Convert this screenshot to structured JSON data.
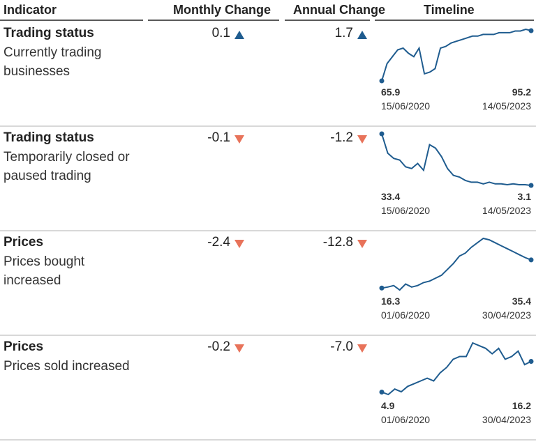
{
  "header": {
    "columns": [
      "Indicator",
      "Monthly Change",
      "Annual Change",
      "Timeline"
    ]
  },
  "rows": [
    {
      "title": "Trading status",
      "subtitle": "Currently trading businesses",
      "monthly_change": "0.1",
      "annual_change": "1.7",
      "timeline": {
        "start_date": "15/06/2020",
        "end_date": "14/05/2023",
        "values": [
          65.9,
          76,
          80,
          84,
          85,
          82,
          80,
          85,
          70,
          71,
          73,
          85,
          86,
          88,
          89,
          90,
          91,
          92,
          92,
          93,
          93,
          93,
          94,
          94,
          94,
          95,
          95,
          96,
          95.2
        ]
      }
    },
    {
      "title": "Trading status",
      "subtitle": "Temporarily closed or paused trading",
      "monthly_change": "-0.1",
      "annual_change": "-1.2",
      "timeline": {
        "start_date": "15/06/2020",
        "end_date": "14/05/2023",
        "values": [
          33.4,
          22,
          19,
          18,
          14,
          13,
          16,
          12,
          27,
          25,
          20,
          13,
          9,
          8,
          6,
          5,
          5,
          4,
          5,
          4,
          4,
          3.5,
          4,
          3.5,
          3.5,
          3.1
        ]
      }
    },
    {
      "title": "Prices",
      "subtitle": "Prices bought increased",
      "monthly_change": "-2.4",
      "annual_change": "-12.8",
      "timeline": {
        "start_date": "01/06/2020",
        "end_date": "30/04/2023",
        "values": [
          16.3,
          17,
          18,
          15,
          19,
          17,
          18,
          20,
          21,
          23,
          25,
          29,
          33,
          38,
          40,
          44,
          47,
          50,
          49,
          47,
          45,
          43,
          41,
          39,
          37,
          35.4
        ]
      }
    },
    {
      "title": "Prices",
      "subtitle": "Prices sold increased",
      "monthly_change": "-0.2",
      "annual_change": "-7.0",
      "timeline": {
        "start_date": "01/06/2020",
        "end_date": "30/04/2023",
        "values": [
          4.9,
          4,
          6,
          5,
          7,
          8,
          9,
          10,
          9,
          12,
          14,
          17,
          18,
          18,
          23,
          22,
          21,
          19,
          21,
          17,
          18,
          20,
          15,
          16.2
        ]
      }
    }
  ]
}
